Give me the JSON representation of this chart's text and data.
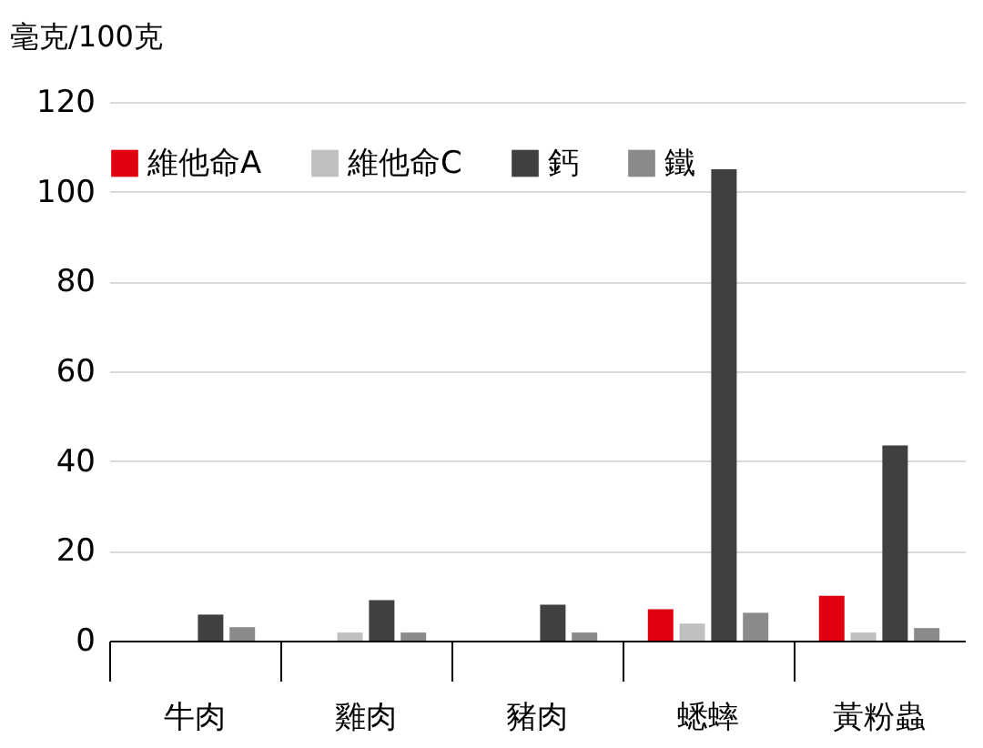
{
  "chart_data": {
    "type": "bar",
    "ylabel": "毫克/100克",
    "categories": [
      "牛肉",
      "雞肉",
      "豬肉",
      "蟋蟀",
      "黃粉蟲"
    ],
    "series": [
      {
        "name": "維他命A",
        "color": "#e00010",
        "values": [
          0,
          0,
          0,
          7,
          10
        ]
      },
      {
        "name": "維他命C",
        "color": "#c0c0c0",
        "values": [
          0,
          1.8,
          0,
          3.8,
          1.8
        ]
      },
      {
        "name": "鈣",
        "color": "#404040",
        "values": [
          5.8,
          9,
          8,
          105,
          43.5
        ]
      },
      {
        "name": "鐵",
        "color": "#8a8a8a",
        "values": [
          3,
          1.8,
          1.8,
          6.2,
          2.8
        ]
      }
    ],
    "ylim": [
      0,
      120
    ],
    "yticks": [
      0,
      20,
      40,
      60,
      80,
      100,
      120
    ],
    "grid": "y",
    "legend": "top"
  }
}
